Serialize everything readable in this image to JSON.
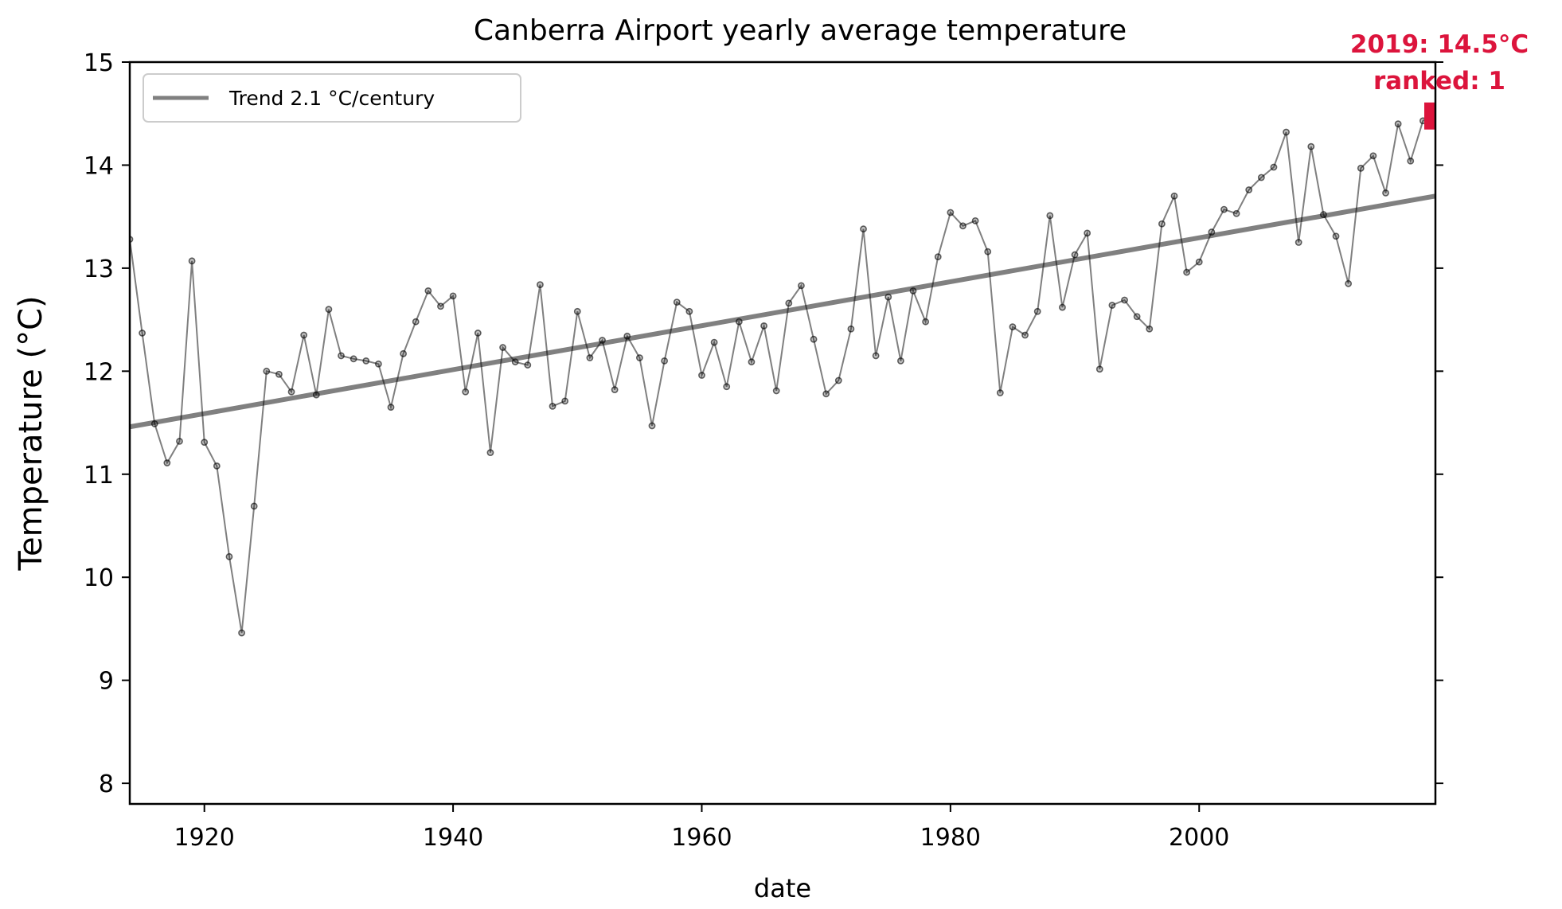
{
  "chart_data": {
    "type": "line",
    "title": "Canberra Airport yearly average temperature",
    "xlabel": "date",
    "ylabel": "Temperature (°C)",
    "xlim": [
      1914,
      2019
    ],
    "ylim": [
      7.8,
      15.0
    ],
    "x_ticks": [
      1920,
      1940,
      1960,
      1980,
      2000
    ],
    "y_ticks": [
      8,
      9,
      10,
      11,
      12,
      13,
      14,
      15
    ],
    "grid": false,
    "legend_position": "top-left",
    "colors": {
      "series": "#000000",
      "trend": "#808080",
      "highlight": "#dc143c"
    },
    "series": [
      {
        "x": [
          1914,
          1915,
          1916,
          1917,
          1918,
          1919,
          1920,
          1921,
          1922,
          1923,
          1924,
          1925,
          1926,
          1927,
          1928,
          1929,
          1930,
          1931,
          1932,
          1933,
          1934,
          1935,
          1936,
          1937,
          1938,
          1939,
          1940,
          1941,
          1942,
          1943,
          1944,
          1945,
          1946,
          1947,
          1948,
          1949,
          1950,
          1951,
          1952,
          1953,
          1954,
          1955,
          1956,
          1957,
          1958,
          1959,
          1960,
          1961,
          1962,
          1963,
          1964,
          1965,
          1966,
          1967,
          1968,
          1969,
          1970,
          1971,
          1972,
          1973,
          1974,
          1975,
          1976,
          1977,
          1978,
          1979,
          1980,
          1981,
          1982,
          1983,
          1984,
          1985,
          1986,
          1987,
          1988,
          1989,
          1990,
          1991,
          1992,
          1993,
          1994,
          1995,
          1996,
          1997,
          1998,
          1999,
          2000,
          2001,
          2002,
          2003,
          2004,
          2005,
          2006,
          2007,
          2008,
          2009,
          2010,
          2011,
          2012,
          2013,
          2014,
          2015,
          2016,
          2017,
          2018,
          2019
        ],
        "values": [
          13.28,
          12.37,
          11.49,
          11.11,
          11.32,
          13.07,
          11.31,
          11.08,
          10.2,
          9.46,
          10.69,
          12.0,
          11.97,
          11.8,
          12.35,
          11.77,
          12.6,
          12.15,
          12.12,
          12.1,
          12.07,
          11.65,
          12.17,
          12.48,
          12.78,
          12.63,
          12.73,
          11.8,
          12.37,
          11.21,
          12.23,
          12.09,
          12.06,
          12.84,
          11.66,
          11.71,
          12.58,
          12.13,
          12.3,
          11.82,
          12.34,
          12.13,
          11.47,
          12.1,
          12.67,
          12.58,
          11.96,
          12.28,
          11.85,
          12.48,
          12.09,
          12.44,
          11.81,
          12.66,
          12.83,
          12.31,
          11.78,
          11.91,
          12.41,
          13.38,
          12.15,
          12.72,
          12.1,
          12.78,
          12.48,
          13.11,
          13.54,
          13.41,
          13.46,
          13.16,
          11.79,
          12.43,
          12.35,
          12.58,
          13.51,
          12.62,
          13.13,
          13.34,
          12.02,
          12.64,
          12.69,
          12.53,
          12.41,
          13.43,
          13.7,
          12.96,
          13.06,
          13.35,
          13.57,
          13.53,
          13.76,
          13.88,
          13.98,
          14.32,
          13.25,
          14.18,
          13.52,
          13.31,
          12.85,
          13.97,
          14.09,
          13.73,
          14.4,
          14.04,
          14.43,
          14.5
        ]
      }
    ],
    "trend": {
      "name": "Trend 2.1 °C/century",
      "x": [
        1914,
        2019
      ],
      "values": [
        11.46,
        13.7
      ]
    },
    "annotation": {
      "line1": "2019: 14.5°C",
      "line2": "ranked: 1",
      "x": 2019,
      "y": 14.5
    }
  }
}
